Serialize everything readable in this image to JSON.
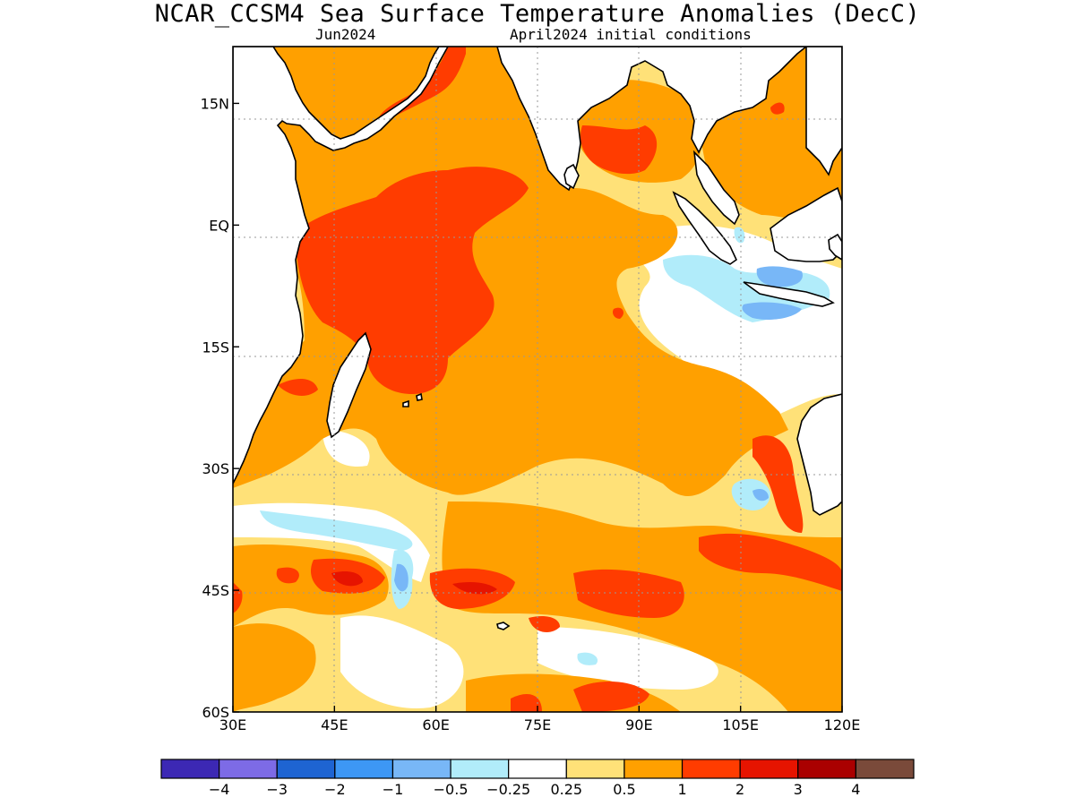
{
  "figure": {
    "title": "NCAR_CCSM4 Sea Surface Temperature Anomalies (DecC)",
    "subtitle_month": "Jun2024",
    "subtitle_init": "April2024 initial conditions"
  },
  "map": {
    "region": "Indian Ocean",
    "lon_range": [
      30,
      120
    ],
    "lat_range": [
      -60,
      22
    ],
    "x_ticks": [
      {
        "lon": 30,
        "label": "30E"
      },
      {
        "lon": 45,
        "label": "45E"
      },
      {
        "lon": 60,
        "label": "60E"
      },
      {
        "lon": 75,
        "label": "75E"
      },
      {
        "lon": 90,
        "label": "90E"
      },
      {
        "lon": 105,
        "label": "105E"
      },
      {
        "lon": 120,
        "label": "120E"
      }
    ],
    "y_ticks": [
      {
        "lat": 15,
        "label": "15N"
      },
      {
        "lat": 0,
        "label": "EQ"
      },
      {
        "lat": -15,
        "label": "15S"
      },
      {
        "lat": -30,
        "label": "30S"
      },
      {
        "lat": -45,
        "label": "45S"
      },
      {
        "lat": -60,
        "label": "60S"
      }
    ],
    "gridlines": true
  },
  "colorbar": {
    "colors": [
      "#3c28b4",
      "#7d6be6",
      "#1e64d2",
      "#3d97f5",
      "#78b7f7",
      "#b1ecfa",
      "#ffffff",
      "#ffe178",
      "#ffa000",
      "#ff3c00",
      "#e61400",
      "#aa0000",
      "#7a4a3a"
    ],
    "labels": [
      "−4",
      "−3",
      "−2",
      "−1",
      "−0.5",
      "−0.25",
      "0.25",
      "0.5",
      "1",
      "2",
      "3",
      "4"
    ]
  },
  "colors": {
    "land": "#ffffff",
    "coast": "#000000",
    "sst_0_25_to_0_5": "#ffe178",
    "sst_0_5_to_1": "#ffa000",
    "sst_1_to_2": "#ff3c00",
    "sst_2_to_3": "#e61400",
    "sst_neg_0_25_to_neg_0_5": "#b1ecfa",
    "sst_neg_0_5_to_neg_1": "#78b7f7"
  }
}
